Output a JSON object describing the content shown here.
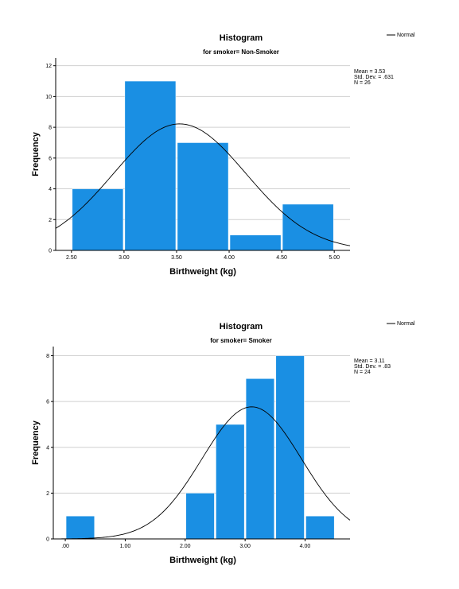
{
  "chart_data": [
    {
      "type": "bar",
      "title": "Histogram",
      "subtitle": "for smoker= Non-Smoker",
      "xlabel": "Birthweight (kg)",
      "ylabel": "Frequency",
      "legend": {
        "label": "Normal",
        "placement": "top-right"
      },
      "stats": [
        "Mean = 3.53",
        "Std. Dev. = .631",
        "N = 26"
      ],
      "bar_color": "#1A8FE3",
      "xlim": [
        2.35,
        5.15
      ],
      "ylim": [
        0,
        12.5
      ],
      "grid": true,
      "xticks": [
        2.5,
        3.0,
        3.5,
        4.0,
        4.5,
        5.0
      ],
      "xtick_labels": [
        "2.50",
        "3.00",
        "3.50",
        "4.00",
        "4.50",
        "5.00"
      ],
      "yticks": [
        0,
        2,
        4,
        6,
        8,
        10,
        12
      ],
      "ytick_labels": [
        "0",
        "2",
        "4",
        "6",
        "8",
        "10",
        "12"
      ],
      "bins": [
        {
          "start": 2.5,
          "end": 3.0,
          "count": 4
        },
        {
          "start": 3.0,
          "end": 3.5,
          "count": 11
        },
        {
          "start": 3.5,
          "end": 4.0,
          "count": 7
        },
        {
          "start": 4.0,
          "end": 4.5,
          "count": 1
        },
        {
          "start": 4.5,
          "end": 5.0,
          "count": 3
        }
      ],
      "normal_curve": {
        "mean": 3.53,
        "sd": 0.631,
        "n": 26,
        "bin_width": 0.5
      }
    },
    {
      "type": "bar",
      "title": "Histogram",
      "subtitle": "for smoker= Smoker",
      "xlabel": "Birthweight (kg)",
      "ylabel": "Frequency",
      "legend": {
        "label": "Normal",
        "placement": "top-right"
      },
      "stats": [
        "Mean = 3.11",
        "Std. Dev. = .83",
        "N = 24"
      ],
      "bar_color": "#1A8FE3",
      "xlim": [
        -0.2,
        4.75
      ],
      "ylim": [
        0,
        8.4
      ],
      "grid": true,
      "xticks": [
        0,
        1,
        2,
        3,
        4
      ],
      "xtick_labels": [
        ".00",
        "1.00",
        "2.00",
        "3.00",
        "4.00"
      ],
      "yticks": [
        0,
        2,
        4,
        6,
        8
      ],
      "ytick_labels": [
        "0",
        "2",
        "4",
        "6",
        "8"
      ],
      "bins": [
        {
          "start": 0.0,
          "end": 0.5,
          "count": 1
        },
        {
          "start": 2.0,
          "end": 2.5,
          "count": 2
        },
        {
          "start": 2.5,
          "end": 3.0,
          "count": 5
        },
        {
          "start": 3.0,
          "end": 3.5,
          "count": 7
        },
        {
          "start": 3.5,
          "end": 4.0,
          "count": 8
        },
        {
          "start": 4.0,
          "end": 4.5,
          "count": 1
        }
      ],
      "normal_curve": {
        "mean": 3.11,
        "sd": 0.83,
        "n": 24,
        "bin_width": 0.5
      }
    }
  ]
}
